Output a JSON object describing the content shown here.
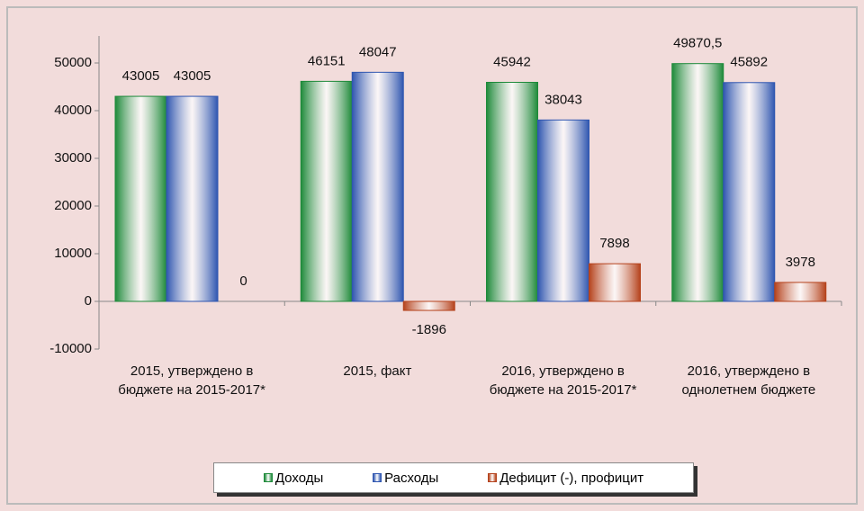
{
  "chart_data": {
    "type": "bar",
    "categories": [
      "2015, утверждено в бюджете на 2015-2017*",
      "2015, факт",
      "2016, утверждено в бюджете на 2015-2017*",
      "2016, утверждено в однолетнем бюджете"
    ],
    "series": [
      {
        "name": "Доходы",
        "color": "#1e8a3a",
        "values": [
          43005,
          46151,
          45942,
          49870.5
        ],
        "value_labels": [
          "43005",
          "46151",
          "45942",
          "49870,5"
        ]
      },
      {
        "name": "Расходы",
        "color": "#2f56b0",
        "values": [
          43005,
          48047,
          38043,
          45892
        ]
      },
      {
        "name": "Дефицит (-), профицит",
        "color": "#b5421c",
        "values": [
          0,
          -1896,
          7898,
          3978
        ]
      }
    ],
    "ylim": [
      -10000,
      50000
    ],
    "yticks": [
      -10000,
      0,
      10000,
      20000,
      30000,
      40000,
      50000
    ],
    "legend": "bottom"
  }
}
